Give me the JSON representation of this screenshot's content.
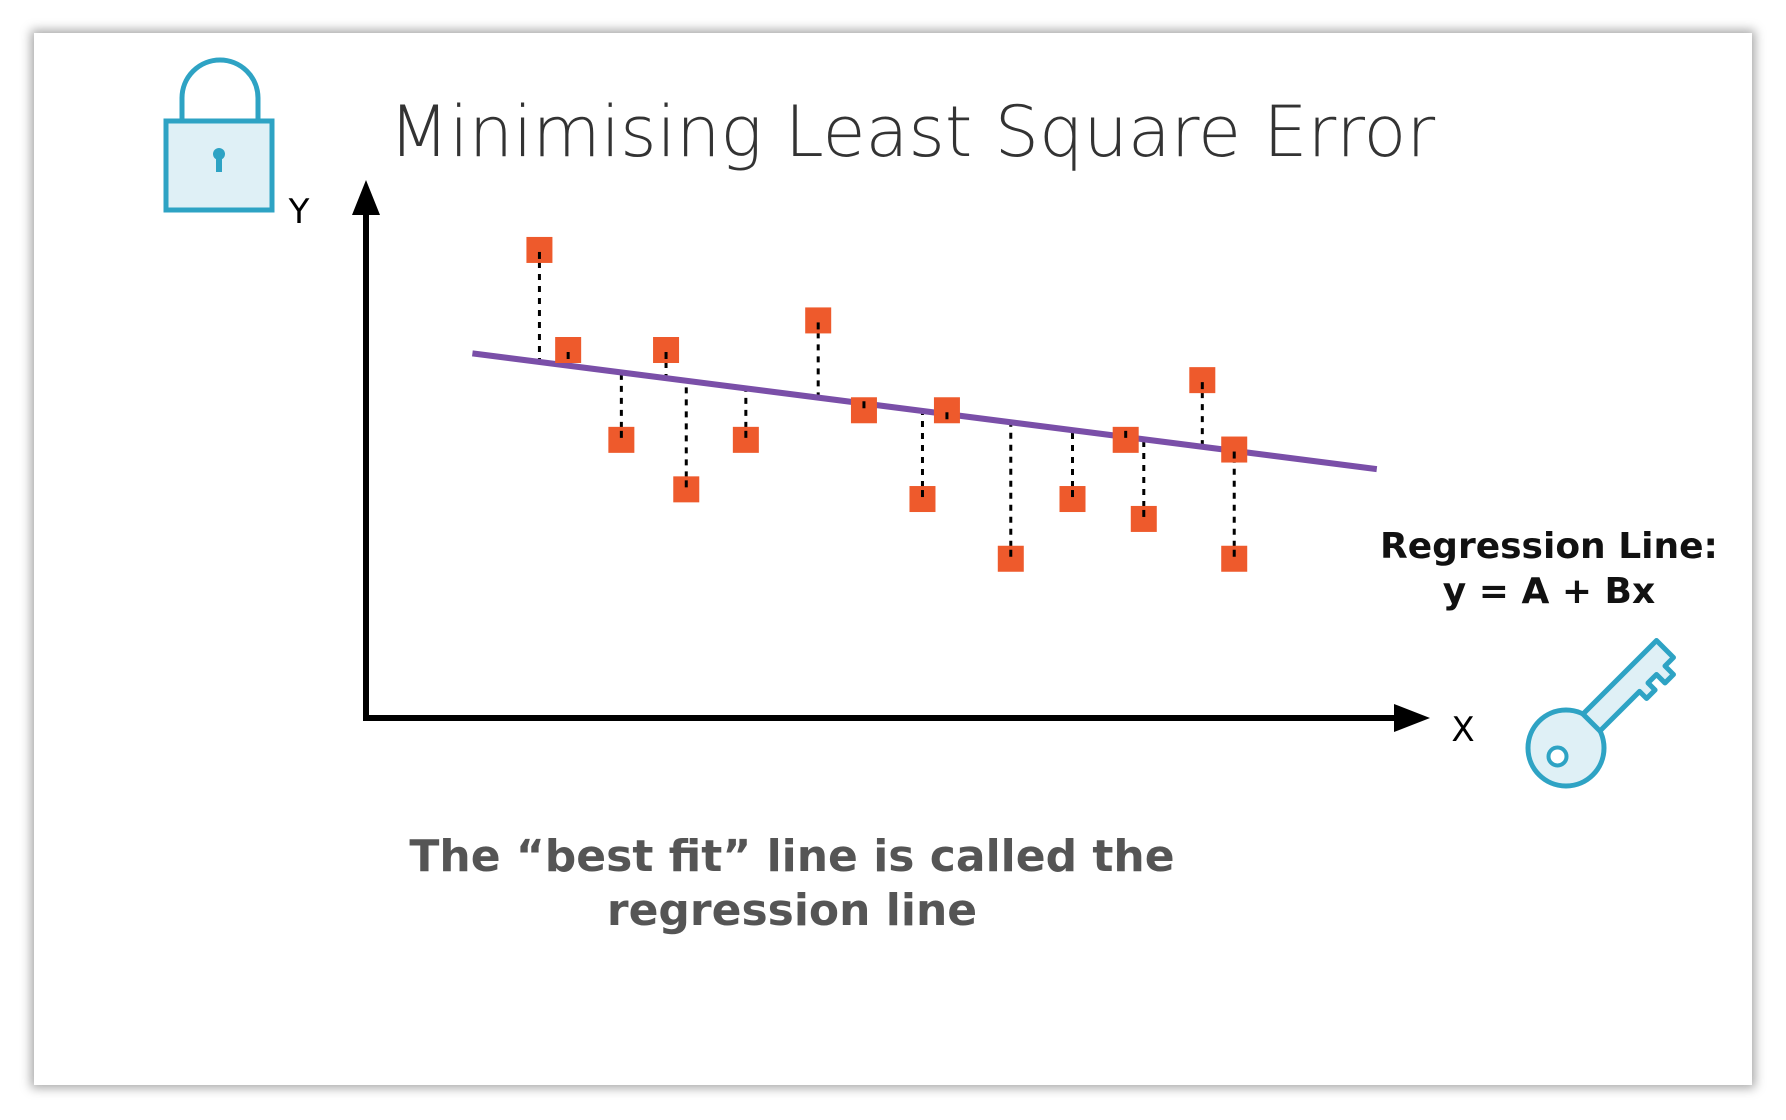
{
  "slide": {
    "title": "Minimising Least Square Error",
    "caption_line1": "The “best fit” line is called the",
    "caption_line2": "regression line",
    "regression_label_line1": "Regression Line:",
    "regression_label_line2": "y = A + Bx"
  },
  "icons": {
    "lock": "lock-icon",
    "key": "key-icon"
  },
  "colors": {
    "point": "#ee5a2c",
    "regression_line": "#7a4fa8",
    "axis": "#000000",
    "icon": "#2ea3c4",
    "icon_fill": "#dff0f6",
    "caption": "#555555",
    "title": "#333333"
  },
  "chart_data": {
    "type": "scatter",
    "title": "Minimising Least Square Error",
    "xlabel": "X",
    "ylabel": "Y",
    "xlim": [
      0,
      100
    ],
    "ylim": [
      0,
      100
    ],
    "grid": false,
    "regression_line": {
      "label": "Regression Line:",
      "equation": "y = A + Bx",
      "intercept": 70.3,
      "slope": -0.253,
      "x_start": 10,
      "x_end": 95
    },
    "residuals": "dashed vertical lines from each point to the regression line",
    "points": [
      {
        "x": 16.3,
        "y": 87.0
      },
      {
        "x": 19.0,
        "y": 68.4
      },
      {
        "x": 24.0,
        "y": 51.7
      },
      {
        "x": 28.2,
        "y": 68.4
      },
      {
        "x": 30.1,
        "y": 42.5
      },
      {
        "x": 35.7,
        "y": 51.7
      },
      {
        "x": 42.5,
        "y": 73.9
      },
      {
        "x": 46.8,
        "y": 57.2
      },
      {
        "x": 52.3,
        "y": 40.7
      },
      {
        "x": 54.6,
        "y": 57.2
      },
      {
        "x": 60.6,
        "y": 29.6
      },
      {
        "x": 66.4,
        "y": 40.7
      },
      {
        "x": 71.4,
        "y": 51.7
      },
      {
        "x": 73.1,
        "y": 37.0
      },
      {
        "x": 78.6,
        "y": 62.8
      },
      {
        "x": 81.6,
        "y": 29.6
      },
      {
        "x": 81.6,
        "y": 49.9
      }
    ]
  }
}
